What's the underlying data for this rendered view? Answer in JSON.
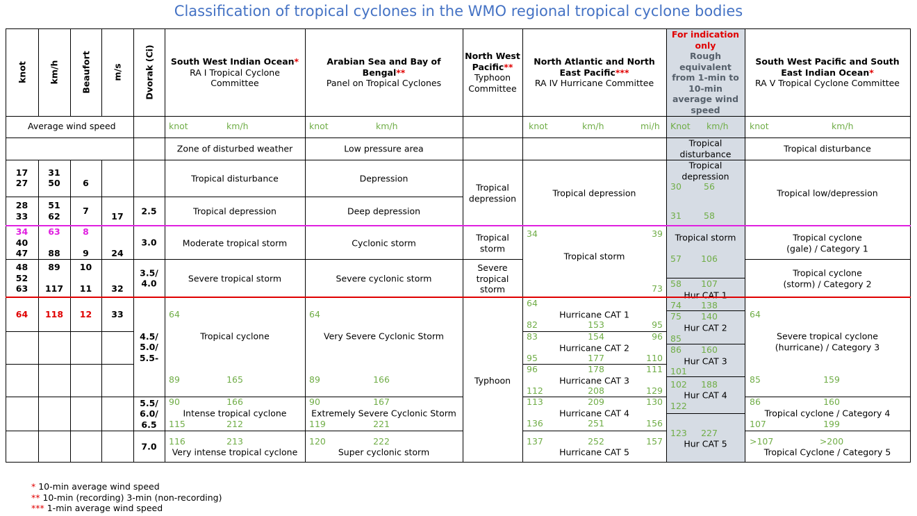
{
  "title": "Classification of tropical cyclones in the WMO regional tropical cyclone bodies",
  "columns": [
    "knot",
    "km/h",
    "Beaufort",
    "m/s",
    "Dvorak (Ci)"
  ],
  "average_label": "Average wind speed",
  "scale": [
    {
      "knot": [
        17,
        27
      ],
      "kmh": [
        31,
        50
      ],
      "beaufort": [
        6
      ]
    },
    {
      "knot": [
        28,
        33
      ],
      "kmh": [
        51,
        62
      ],
      "beaufort": [
        7
      ],
      "ms": [
        17
      ]
    },
    {
      "knot": [
        34,
        40,
        47
      ],
      "kmh": [
        63,
        88
      ],
      "beaufort": [
        8,
        9
      ],
      "ms": [
        24
      ]
    },
    {
      "knot": [
        48,
        52,
        63
      ],
      "kmh": [
        89,
        117
      ],
      "beaufort": [
        10,
        11
      ],
      "ms": [
        32
      ]
    },
    {
      "knot": [
        64
      ],
      "kmh": [
        118
      ],
      "beaufort": [
        12
      ],
      "ms": [
        33
      ]
    }
  ],
  "dvorak": [
    [
      "2.5"
    ],
    [
      "3.0"
    ],
    [
      "3.5/",
      "4.0"
    ],
    [
      "4.5/",
      "5.0/",
      "5.5-"
    ],
    [
      "5.5/",
      "6.0/",
      "6.5"
    ],
    [
      "7.0"
    ]
  ],
  "regions": [
    {
      "name": "South West Indian Ocean",
      "note": "*",
      "body": "RA I Tropical Cyclone Committee",
      "units": [
        "knot",
        "km/h"
      ],
      "classes": [
        {
          "name": "Zone of disturbed weather"
        },
        {
          "name": "Tropical disturbance"
        },
        {
          "name": "Tropical depression"
        },
        {
          "name": "Moderate tropical storm"
        },
        {
          "name": "Severe tropical storm"
        },
        {
          "name": "Tropical cyclone",
          "top": [
            64
          ],
          "bottom": [
            89,
            165
          ]
        },
        {
          "name": "Intense tropical cyclone",
          "top": [
            90,
            166
          ],
          "bottom": [
            115,
            212
          ]
        },
        {
          "name": "Very intense tropical cyclone",
          "top": [
            116,
            213
          ]
        }
      ]
    },
    {
      "name": "Arabian Sea and Bay of Bengal",
      "note": "**",
      "body": "Panel on Tropical Cyclones",
      "units": [
        "knot",
        "km/h"
      ],
      "classes": [
        {
          "name": "Low pressure area"
        },
        {
          "name": "Depression"
        },
        {
          "name": "Deep depression"
        },
        {
          "name": "Cyclonic storm"
        },
        {
          "name": "Severe cyclonic storm"
        },
        {
          "name": "Very Severe Cyclonic Storm",
          "top": [
            64
          ],
          "bottom": [
            89,
            166
          ]
        },
        {
          "name": "Extremely Severe Cyclonic Storm",
          "top": [
            90,
            167
          ],
          "bottom": [
            119,
            221
          ]
        },
        {
          "name": "Super cyclonic storm",
          "top": [
            120,
            222
          ]
        }
      ]
    },
    {
      "name": "North West Pacific",
      "note": "**",
      "body": "Typhoon Committee",
      "classes": [
        {
          "name": "Tropical depression"
        },
        {
          "name": "Tropical storm"
        },
        {
          "name": "Severe tropical storm"
        },
        {
          "name": "Typhoon"
        }
      ]
    },
    {
      "name": "North Atlantic and North East Pacific",
      "note": "***",
      "body": "RA IV Hurricane Committee",
      "units": [
        "knot",
        "km/h",
        "mi/h"
      ],
      "classes": [
        {
          "name": "Tropical depression"
        },
        {
          "name": "Tropical storm",
          "top": [
            34,
            39
          ],
          "bottom": [
            73
          ]
        },
        {
          "name": "Hurricane CAT 1",
          "top": [
            64
          ],
          "bottom": [
            82,
            153,
            95
          ]
        },
        {
          "name": "Hurricane CAT 2",
          "top": [
            83,
            154,
            96
          ],
          "bottom": [
            95,
            177,
            110
          ]
        },
        {
          "name": "Hurricane CAT 3",
          "top": [
            96,
            178,
            111
          ],
          "bottom": [
            112,
            208,
            129
          ]
        },
        {
          "name": "Hurricane CAT 4",
          "top": [
            113,
            209,
            130
          ],
          "bottom": [
            136,
            251,
            156
          ]
        },
        {
          "name": "Hurricane CAT 5",
          "top": [
            137,
            252,
            157
          ]
        }
      ]
    },
    {
      "note": "For indication only",
      "name": "Rough equivalent from 1-min to 10-min average wind speed",
      "units": [
        "Knot",
        "km/h"
      ],
      "classes": [
        {
          "name": "Tropical disturbance"
        },
        {
          "name": "Tropical depression",
          "top": [
            30,
            56
          ],
          "bottom": [
            31,
            58
          ]
        },
        {
          "name": "Tropical storm",
          "bottom": [
            57,
            106
          ]
        },
        {
          "name": "Hur CAT 1",
          "top": [
            58,
            107
          ],
          "bottom": [
            74,
            138
          ]
        },
        {
          "name": "Hur CAT 2",
          "top": [
            75,
            140
          ],
          "bottom": [
            85
          ]
        },
        {
          "name": "Hur CAT 3",
          "top": [
            86,
            160
          ],
          "bottom": [
            101
          ]
        },
        {
          "name": "Hur CAT 4",
          "top": [
            102,
            188
          ],
          "bottom": [
            122
          ]
        },
        {
          "name": "Hur CAT 5",
          "top": [
            123,
            227
          ]
        }
      ]
    },
    {
      "name": "South West Pacific and South East Indian Ocean",
      "note": "*",
      "body": "RA V Tropical Cyclone Committee",
      "units": [
        "knot",
        "km/h"
      ],
      "classes": [
        {
          "name": "Tropical disturbance"
        },
        {
          "name": "Tropical low/depression"
        },
        {
          "name": [
            "Tropical cyclone",
            "(gale) / Category 1"
          ]
        },
        {
          "name": [
            "Tropical cyclone",
            "(storm) / Category 2"
          ]
        },
        {
          "name": [
            "Severe tropical cyclone",
            "(hurricane) / Category 3"
          ],
          "top": [
            64
          ],
          "bottom": [
            85,
            159
          ]
        },
        {
          "name": "Tropical cyclone / Category 4",
          "top": [
            86,
            160
          ],
          "bottom": [
            107,
            199
          ]
        },
        {
          "name": "Tropical Cyclone / Category 5",
          "top": [
            ">107",
            ">200"
          ]
        }
      ]
    }
  ],
  "footnotes": [
    {
      "mark": "*",
      "text": "10-min average wind speed"
    },
    {
      "mark": "**",
      "text": "10-min (recording) 3-min (non-recording)"
    },
    {
      "mark": "***",
      "text": "1-min average wind speed"
    }
  ]
}
